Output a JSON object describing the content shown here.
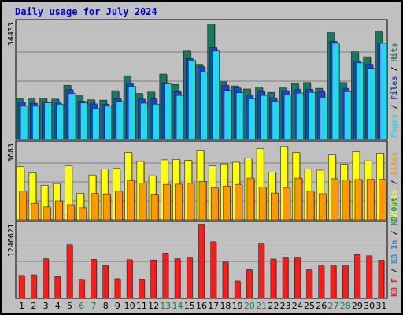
{
  "chart_data": {
    "type": "bar",
    "title": "Daily usage for July 2024",
    "days": [
      "1",
      "2",
      "3",
      "4",
      "5",
      "6",
      "7",
      "8",
      "9",
      "10",
      "11",
      "12",
      "13",
      "14",
      "15",
      "16",
      "17",
      "18",
      "19",
      "20",
      "21",
      "22",
      "23",
      "24",
      "25",
      "26",
      "27",
      "28",
      "29",
      "30",
      "31"
    ],
    "weekend_days": [
      "6",
      "7",
      "13",
      "14",
      "20",
      "21",
      "27",
      "28"
    ],
    "colors": {
      "hits": "#157a5f",
      "files": "#1e3fd8",
      "pages": "#22d8f0",
      "visits": "#ffff00",
      "sites": "#ff9900",
      "kb_f": "#ff1a1a",
      "kb_in": "#1e88e5",
      "kb_out": "#1ea84c",
      "weekday_label": "#000000",
      "weekend_label": "#157a5f"
    },
    "panels": [
      {
        "id": "hits-files-pages",
        "ymax": 34433,
        "ymax_label": "34433",
        "legend": [
          "Pages",
          "/",
          "Files",
          "/",
          "Hits"
        ],
        "legend_colors": [
          "#22d8f0",
          "#000000",
          "#1e3fd8",
          "#000000",
          "#157a5f"
        ],
        "series": [
          {
            "name": "Hits",
            "color": "#157a5f",
            "values": [
              12100,
              12200,
              12200,
              11900,
              16000,
              13100,
              11700,
              11600,
              14400,
              18800,
              13600,
              14000,
              19300,
              16200,
              26100,
              22200,
              34100,
              17000,
              15800,
              14900,
              15500,
              13900,
              15200,
              16400,
              16800,
              15100,
              31500,
              16800,
              25900,
              24400,
              31900
            ]
          },
          {
            "name": "Files",
            "color": "#1e3fd8",
            "values": [
              11000,
              10700,
              11000,
              11100,
              14700,
              11300,
              10500,
              10400,
              12100,
              16700,
              11900,
              12000,
              16700,
              14100,
              23900,
              21500,
              27100,
              16000,
              15200,
              13200,
              14100,
              12300,
              14400,
              14800,
              14800,
              14100,
              29000,
              15100,
              23100,
              22200,
              28200
            ]
          },
          {
            "name": "Pages",
            "color": "#22d8f0",
            "values": [
              9800,
              9800,
              10800,
              10400,
              13600,
              10800,
              9100,
              9800,
              11200,
              15700,
              10700,
              10400,
              16400,
              13000,
              23400,
              19900,
              26100,
              14500,
              13800,
              12000,
              13000,
              11200,
              13200,
              13700,
              13900,
              12300,
              28400,
              14100,
              22600,
              21000,
              28400
            ]
          }
        ]
      },
      {
        "id": "visits-sites",
        "ymax": 3683,
        "ymax_label": "3683",
        "legend": [
          "Visits",
          "/",
          "Sites"
        ],
        "legend_colors": [
          "#ffff00",
          "#000000",
          "#ff9900"
        ],
        "series": [
          {
            "name": "Visits",
            "color": "#ffff00",
            "values": [
              2580,
              2290,
              1670,
              1760,
              2630,
              1290,
              2180,
              2470,
              2500,
              3280,
              2840,
              2140,
              2920,
              2940,
              2890,
              3360,
              2620,
              2720,
              2800,
              3000,
              3470,
              2320,
              3560,
              3280,
              2480,
              2420,
              3160,
              2700,
              3320,
              2870,
              3240
            ]
          },
          {
            "name": "Sites",
            "color": "#ff9900",
            "values": [
              1400,
              800,
              620,
              920,
              730,
              580,
              1280,
              1260,
              1400,
              1900,
              1790,
              1240,
              1720,
              1730,
              1770,
              1870,
              1550,
              1640,
              1720,
              2030,
              1590,
              1300,
              1570,
              2030,
              1390,
              1270,
              2000,
              1940,
              1960,
              1970,
              1980
            ]
          }
        ]
      },
      {
        "id": "kbytes",
        "ymax": 1246621,
        "ymax_label": "1246621",
        "legend": [
          "KB F",
          "/",
          "KB In",
          "/",
          "KB Out"
        ],
        "legend_colors": [
          "#ff1a1a",
          "#000000",
          "#1e88e5",
          "#000000",
          "#1ea84c"
        ],
        "series": [
          {
            "name": "KB F",
            "color": "#ff1a1a",
            "values": [
              387000,
              397000,
              668000,
              369000,
              905000,
              322000,
              658000,
              552000,
              333000,
              652000,
              326000,
              647000,
              765000,
              668000,
              695000,
              1246621,
              957000,
              612000,
              292000,
              485000,
              933000,
              663000,
              695000,
              695000,
              484000,
              562000,
              562000,
              562000,
              740000,
              718000,
              644000
            ]
          }
        ]
      }
    ]
  }
}
